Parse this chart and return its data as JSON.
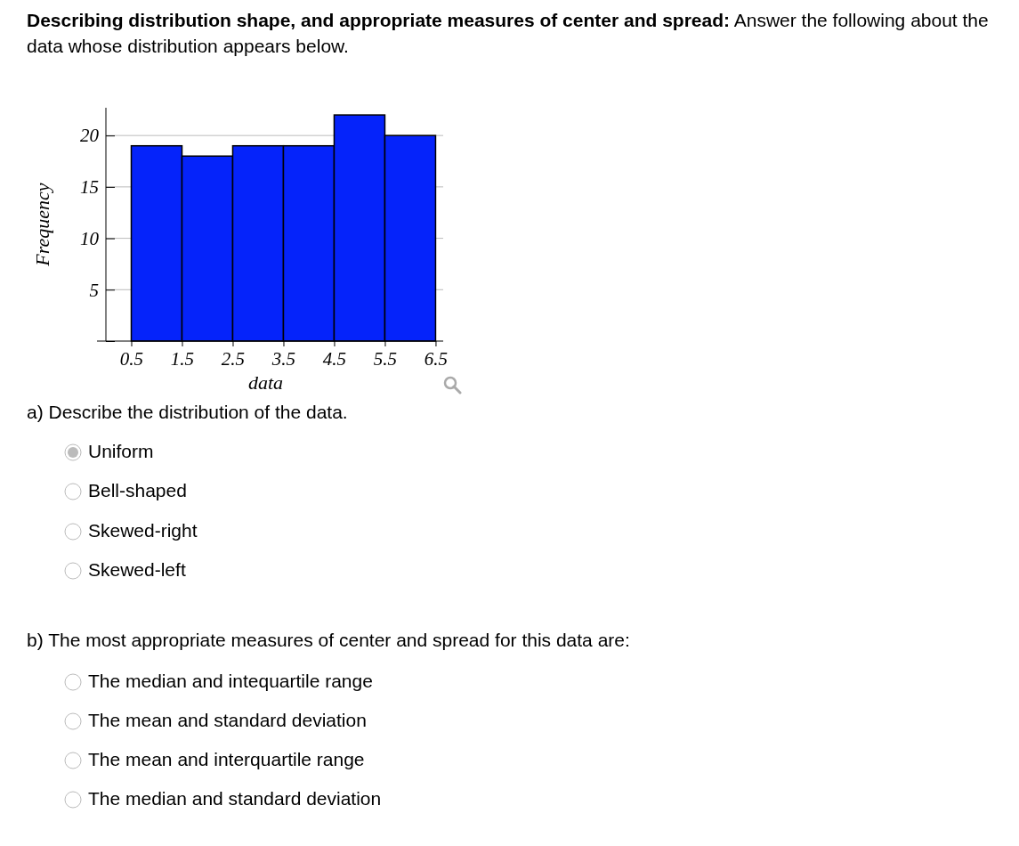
{
  "chart_data": {
    "type": "histogram",
    "title": "Describing distribution shape, and appropriate measures of center and spread:",
    "subtitle": "Answer the following about the data whose distribution appears below.",
    "xlabel": "data",
    "ylabel": "Frequency",
    "bins": [
      0.5,
      1.5,
      2.5,
      3.5,
      4.5,
      5.5,
      6.5
    ],
    "values": [
      19,
      18,
      19,
      19,
      22,
      20
    ],
    "color": "#0523fa",
    "xlim": [
      0,
      6.65
    ],
    "ylim": [
      0,
      22.7
    ],
    "xticks": [
      0.5,
      1.5,
      2.5,
      3.5,
      4.5,
      5.5,
      6.5
    ],
    "yticks": [
      {
        "value": 0,
        "label": null
      },
      5,
      10,
      15,
      20
    ],
    "grid": "y",
    "annotations": [
      "a) Describe the distribution of the data.",
      "Uniform",
      "Bell-shaped",
      "Skewed-right",
      "Skewed-left",
      "b) The most appropriate measures of center and spread for this data are:",
      "The median and intequartile range",
      "The mean and standard deviation",
      "The mean and interquartile range",
      "The median and standard deviation"
    ]
  }
}
